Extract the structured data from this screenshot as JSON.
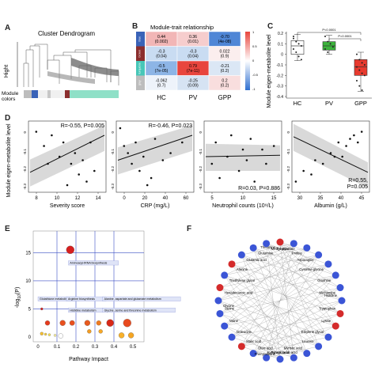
{
  "panels": {
    "A": {
      "letter": "A",
      "title": "Cluster Dendrogram",
      "ylabel": "Hight",
      "colors_label": "Module\ncolors"
    },
    "B": {
      "letter": "B",
      "title": "Module-trait relationship",
      "rows": [
        {
          "label": "blue",
          "color": "#3a63b8"
        },
        {
          "label": "brown",
          "color": "#8b2e2e"
        },
        {
          "label": "turquoise",
          "color": "#47c7b8"
        },
        {
          "label": "grey",
          "color": "#bdbdbd"
        }
      ],
      "columns": [
        "HC",
        "PV",
        "GPP"
      ],
      "cells": [
        [
          {
            "text": "0.44\n(0.002)",
            "color": "#f2b6b6"
          },
          {
            "text": "0.36\n(0.01)",
            "color": "#f6cdcd"
          },
          {
            "text": "-0.70\n(4e-08)",
            "color": "#4f86d6"
          }
        ],
        [
          {
            "text": "-0.3\n(0.04)",
            "color": "#c9dcf2"
          },
          {
            "text": "-0.3\n(0.04)",
            "color": "#c9dcf2"
          },
          {
            "text": "0.022\n(0.9)",
            "color": "#fbeeee"
          }
        ],
        [
          {
            "text": "-0.5\n(7e-05)",
            "color": "#8db5e6"
          },
          {
            "text": "0.79\n(7e-11)",
            "color": "#e8453d"
          },
          {
            "text": "-0.21\n(0.2)",
            "color": "#dbe7f5"
          }
        ],
        [
          {
            "text": "-0.062\n(0.7)",
            "color": "#eef3fa"
          },
          {
            "text": "-0.25\n(0.09)",
            "color": "#d6e3f3"
          },
          {
            "text": "0.2\n(0.2)",
            "color": "#f9dede"
          }
        ]
      ],
      "scale_ticks": [
        "1",
        "0.5",
        "0",
        "-0.5",
        "-1"
      ]
    },
    "C": {
      "letter": "C",
      "ylabel": "Module eigen-metabolite level",
      "groups": [
        "HC",
        "PV",
        "GPP"
      ],
      "colors": [
        "#ffffff",
        "#3bb33b",
        "#e83a2e"
      ],
      "pvals": [
        "P<0.0001",
        "P=0.0001"
      ],
      "yticks": [
        "0.2",
        "0.1",
        "0",
        "-0.1",
        "-0.2",
        "-0.3",
        "-0.4"
      ]
    },
    "D": {
      "letter": "D",
      "ylabel": "Module eigen-metabolite level",
      "plots": [
        {
          "xlabel": "Severity score",
          "stat": "R=-0.55, P=0.005",
          "xticks": [
            "8",
            "10",
            "12",
            "14"
          ],
          "yticks": [
            "0",
            "-0.1",
            "-0.2",
            "-0.3"
          ]
        },
        {
          "xlabel": "CRP (mg/L)",
          "stat": "R=-0.46, P=0.023",
          "xticks": [
            "0",
            "20",
            "40",
            "60"
          ],
          "yticks": [
            "0",
            "-0.1",
            "-0.2",
            "-0.3"
          ]
        },
        {
          "xlabel": "Neutrophil counts (10⁹/L)",
          "stat": "R=0.03, P=0.886",
          "xticks": [
            "5",
            "10",
            "15"
          ],
          "yticks": [
            "0",
            "-0.1",
            "-0.2",
            "-0.3"
          ]
        },
        {
          "xlabel": "Albumin (g/L)",
          "stat": "R=0.55,\nP=0.005",
          "xticks": [
            "30",
            "35",
            "40",
            "45"
          ],
          "yticks": [
            "0",
            "-0.1",
            "-0.2",
            "-0.3"
          ]
        }
      ]
    },
    "E": {
      "letter": "E",
      "ylabel": "-log10(P)",
      "xlabel": "Pathway Impact",
      "xticks": [
        "0",
        "0.1",
        "0.2",
        "0.3",
        "0.4",
        "0.5"
      ],
      "yticks": [
        "0",
        "5",
        "10",
        "15"
      ],
      "labels": [
        "Aminoacyl-tRNA biosynthesis",
        "Glutathione metabolism",
        "Arginine biosynthesis",
        "Histidine metabolism",
        "Alanine, aspartate and glutamate metabolism",
        "Glycine, serine and threonine metabolism"
      ]
    },
    "F": {
      "letter": "F",
      "nodes": [
        "Threonine",
        "Tyrosine",
        "Methyl glycolate",
        "Proline",
        "Glutamine",
        "Asparagine",
        "Glutamic acid",
        "Cysteine-glycine",
        "Alanine",
        "Ornithine",
        "Triethylene glycol",
        "Methionine",
        "Hexadecanoic acid",
        "Histidine",
        "Glycine",
        "Tryptophan",
        "Serine",
        "Lysine",
        "Valine",
        "Ethylene glycol",
        "Isoleucine",
        "Leucine",
        "Malic acid",
        "Myristic acid",
        "Oleic acid",
        "Kynurenic acid",
        "Pyroglutamic acid",
        "Phenylalanine"
      ]
    }
  }
}
